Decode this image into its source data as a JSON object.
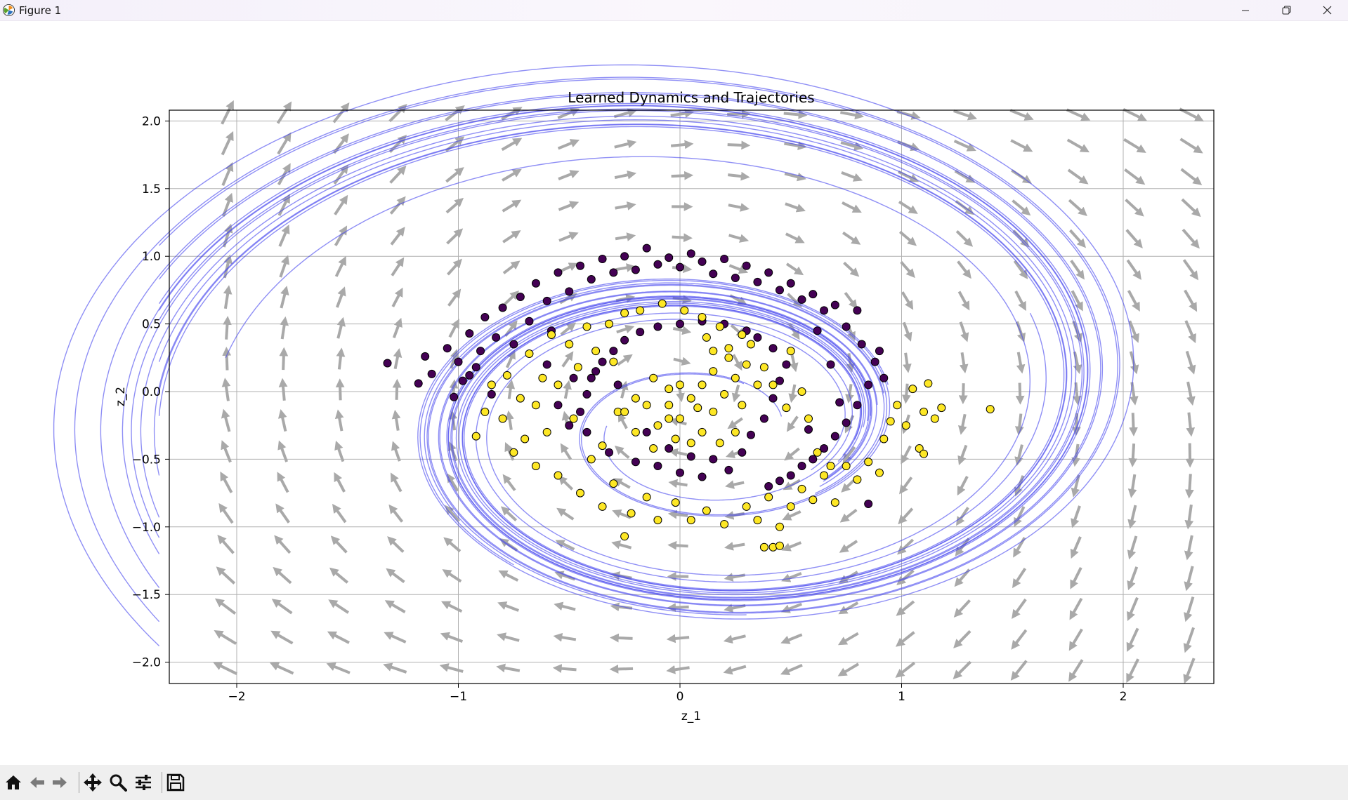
{
  "window": {
    "title": "Figure 1",
    "icons": {
      "app": "matplotlib-logo-icon",
      "minimize": "minimize-icon",
      "restore": "restore-icon",
      "close": "close-icon"
    }
  },
  "toolbar": {
    "buttons": [
      "home-icon",
      "back-arrow-icon",
      "forward-arrow-icon",
      "pan-icon",
      "zoom-icon",
      "configure-subplots-icon",
      "save-icon"
    ]
  },
  "colors": {
    "quiver": "#a9a9a9",
    "trajectory": "#4444ee",
    "class_0": "#440154",
    "class_1": "#fde725",
    "grid": "#b0b0b0"
  },
  "chart_data": {
    "type": "scatter",
    "title": "Learned Dynamics and Trajectories",
    "xlabel": "z_1",
    "ylabel": "z_2",
    "xlim": [
      -2.35,
      2.35
    ],
    "ylim": [
      -2.15,
      2.07
    ],
    "xticks": [
      -2,
      -1,
      0,
      1,
      2
    ],
    "xtick_labels": [
      "−2",
      "−1",
      "0",
      "1",
      "2"
    ],
    "yticks": [
      2.0,
      1.5,
      1.0,
      0.5,
      0.0,
      -0.5,
      -1.0,
      -1.5,
      -2.0
    ],
    "ytick_labels": [
      "2.0",
      "1.5",
      "1.0",
      "0.5",
      "0.0",
      "−0.5",
      "−1.0",
      "−1.5",
      "−2.0"
    ],
    "grid": true,
    "series": [
      {
        "color": "#440154",
        "points": [
          [
            -1.32,
            0.21
          ],
          [
            -1.15,
            0.26
          ],
          [
            -1.12,
            0.13
          ],
          [
            -1.18,
            0.06
          ],
          [
            -1.05,
            0.32
          ],
          [
            -1.02,
            -0.04
          ],
          [
            -0.95,
            0.43
          ],
          [
            -0.92,
            0.18
          ],
          [
            -0.88,
            0.55
          ],
          [
            -0.83,
            0.4
          ],
          [
            -0.8,
            0.62
          ],
          [
            -0.75,
            0.35
          ],
          [
            -0.72,
            0.7
          ],
          [
            -0.68,
            0.52
          ],
          [
            -0.65,
            0.8
          ],
          [
            -0.6,
            0.67
          ],
          [
            -0.58,
            0.45
          ],
          [
            -0.55,
            0.88
          ],
          [
            -0.5,
            0.74
          ],
          [
            -0.45,
            0.93
          ],
          [
            -0.4,
            0.83
          ],
          [
            -0.35,
            0.98
          ],
          [
            -0.3,
            0.88
          ],
          [
            -0.25,
            1.0
          ],
          [
            -0.2,
            0.9
          ],
          [
            -0.15,
            1.06
          ],
          [
            -0.1,
            0.94
          ],
          [
            -0.05,
            0.99
          ],
          [
            0.0,
            0.92
          ],
          [
            0.05,
            1.02
          ],
          [
            0.1,
            0.96
          ],
          [
            0.15,
            0.87
          ],
          [
            0.2,
            0.98
          ],
          [
            0.25,
            0.84
          ],
          [
            0.3,
            0.93
          ],
          [
            0.35,
            0.81
          ],
          [
            0.4,
            0.88
          ],
          [
            0.45,
            0.75
          ],
          [
            0.5,
            0.8
          ],
          [
            0.55,
            0.68
          ],
          [
            0.6,
            0.72
          ],
          [
            0.65,
            0.6
          ],
          [
            0.7,
            0.64
          ],
          [
            0.75,
            0.48
          ],
          [
            0.8,
            0.6
          ],
          [
            0.82,
            0.35
          ],
          [
            0.88,
            0.22
          ],
          [
            0.85,
            0.05
          ],
          [
            0.8,
            -0.1
          ],
          [
            0.75,
            -0.23
          ],
          [
            0.7,
            -0.33
          ],
          [
            0.65,
            -0.42
          ],
          [
            0.6,
            -0.5
          ],
          [
            0.55,
            -0.55
          ],
          [
            0.5,
            -0.62
          ],
          [
            0.45,
            -0.66
          ],
          [
            0.4,
            -0.7
          ],
          [
            -0.98,
            0.08
          ],
          [
            -1.0,
            0.22
          ],
          [
            -0.9,
            0.3
          ],
          [
            -0.85,
            -0.02
          ],
          [
            -0.95,
            0.12
          ],
          [
            -0.6,
            0.2
          ],
          [
            -0.55,
            -0.1
          ],
          [
            -0.48,
            0.1
          ],
          [
            -0.42,
            -0.3
          ],
          [
            -0.38,
            0.15
          ],
          [
            -0.32,
            -0.45
          ],
          [
            -0.28,
            0.05
          ],
          [
            -0.2,
            -0.52
          ],
          [
            -0.15,
            -0.3
          ],
          [
            -0.1,
            -0.55
          ],
          [
            -0.05,
            -0.42
          ],
          [
            0.0,
            -0.6
          ],
          [
            0.05,
            -0.48
          ],
          [
            0.1,
            -0.63
          ],
          [
            0.15,
            -0.5
          ],
          [
            0.22,
            -0.58
          ],
          [
            0.28,
            -0.45
          ],
          [
            0.32,
            -0.32
          ],
          [
            0.38,
            -0.2
          ],
          [
            0.42,
            -0.05
          ],
          [
            0.45,
            0.08
          ],
          [
            0.48,
            0.2
          ],
          [
            0.42,
            0.32
          ],
          [
            0.35,
            0.4
          ],
          [
            0.3,
            0.45
          ],
          [
            0.2,
            0.5
          ],
          [
            0.1,
            0.52
          ],
          [
            0.0,
            0.5
          ],
          [
            -0.1,
            0.48
          ],
          [
            -0.18,
            0.44
          ],
          [
            -0.25,
            0.38
          ],
          [
            -0.3,
            0.3
          ],
          [
            -0.35,
            0.22
          ],
          [
            -0.4,
            0.1
          ],
          [
            -0.42,
            -0.02
          ],
          [
            -0.45,
            -0.15
          ],
          [
            -0.5,
            -0.25
          ],
          [
            0.85,
            -0.83
          ],
          [
            0.9,
            0.3
          ],
          [
            0.92,
            0.1
          ],
          [
            0.62,
            0.45
          ],
          [
            0.68,
            0.2
          ],
          [
            0.72,
            -0.08
          ],
          [
            0.58,
            -0.28
          ]
        ]
      },
      {
        "color": "#fde725",
        "points": [
          [
            -0.92,
            -0.33
          ],
          [
            -0.88,
            -0.15
          ],
          [
            -0.85,
            0.05
          ],
          [
            -0.8,
            -0.2
          ],
          [
            -0.78,
            0.12
          ],
          [
            -0.75,
            -0.45
          ],
          [
            -0.72,
            -0.05
          ],
          [
            -0.68,
            0.28
          ],
          [
            -0.65,
            -0.55
          ],
          [
            -0.62,
            0.1
          ],
          [
            -0.6,
            -0.3
          ],
          [
            -0.58,
            0.42
          ],
          [
            -0.55,
            -0.62
          ],
          [
            -0.5,
            0.35
          ],
          [
            -0.48,
            -0.2
          ],
          [
            -0.45,
            -0.75
          ],
          [
            -0.42,
            0.48
          ],
          [
            -0.4,
            -0.5
          ],
          [
            -0.35,
            -0.85
          ],
          [
            -0.32,
            0.5
          ],
          [
            -0.3,
            -0.68
          ],
          [
            -0.28,
            -0.15
          ],
          [
            -0.25,
            0.58
          ],
          [
            -0.22,
            -0.9
          ],
          [
            -0.2,
            -0.05
          ],
          [
            -0.18,
            0.6
          ],
          [
            -0.15,
            -0.78
          ],
          [
            -0.12,
            0.1
          ],
          [
            -0.1,
            -0.95
          ],
          [
            -0.08,
            0.65
          ],
          [
            -0.05,
            -0.2
          ],
          [
            -0.02,
            -0.82
          ],
          [
            0.0,
            0.05
          ],
          [
            0.02,
            0.6
          ],
          [
            0.05,
            -0.95
          ],
          [
            0.08,
            -0.12
          ],
          [
            0.1,
            0.55
          ],
          [
            0.12,
            -0.88
          ],
          [
            0.15,
            0.15
          ],
          [
            0.18,
            0.48
          ],
          [
            0.2,
            -0.98
          ],
          [
            0.22,
            0.25
          ],
          [
            0.25,
            -0.3
          ],
          [
            0.28,
            0.42
          ],
          [
            0.3,
            -0.85
          ],
          [
            0.32,
            0.35
          ],
          [
            0.35,
            -0.95
          ],
          [
            0.38,
            0.18
          ],
          [
            0.4,
            -0.78
          ],
          [
            0.42,
            0.05
          ],
          [
            0.45,
            -1.0
          ],
          [
            0.48,
            -0.12
          ],
          [
            0.5,
            -0.85
          ],
          [
            0.55,
            -0.72
          ],
          [
            0.6,
            -0.8
          ],
          [
            0.65,
            -0.62
          ],
          [
            0.7,
            -0.82
          ],
          [
            0.75,
            -0.55
          ],
          [
            0.8,
            -0.65
          ],
          [
            0.85,
            -0.52
          ],
          [
            0.9,
            -0.6
          ],
          [
            0.92,
            -0.35
          ],
          [
            0.95,
            -0.22
          ],
          [
            0.98,
            -0.1
          ],
          [
            1.02,
            -0.25
          ],
          [
            1.05,
            0.02
          ],
          [
            1.08,
            -0.42
          ],
          [
            1.1,
            -0.15
          ],
          [
            1.12,
            0.06
          ],
          [
            1.15,
            -0.2
          ],
          [
            1.18,
            -0.12
          ],
          [
            1.1,
            -0.46
          ],
          [
            1.4,
            -0.13
          ],
          [
            0.38,
            -1.15
          ],
          [
            0.42,
            -1.15
          ],
          [
            0.45,
            -1.14
          ],
          [
            -0.15,
            -0.1
          ],
          [
            -0.1,
            -0.25
          ],
          [
            -0.05,
            -0.1
          ],
          [
            0.0,
            -0.2
          ],
          [
            0.05,
            -0.05
          ],
          [
            0.1,
            -0.3
          ],
          [
            0.15,
            -0.15
          ],
          [
            0.2,
            -0.02
          ],
          [
            0.25,
            0.1
          ],
          [
            -0.2,
            -0.3
          ],
          [
            -0.25,
            -0.15
          ],
          [
            -0.05,
            0.02
          ],
          [
            0.1,
            0.05
          ],
          [
            0.3,
            0.2
          ],
          [
            0.35,
            0.05
          ],
          [
            0.28,
            -0.1
          ],
          [
            -0.02,
            -0.35
          ],
          [
            0.05,
            -0.38
          ],
          [
            -0.12,
            -0.42
          ],
          [
            0.18,
            -0.38
          ],
          [
            0.22,
            0.32
          ],
          [
            0.15,
            0.3
          ],
          [
            -0.35,
            -0.4
          ],
          [
            -0.55,
            0.05
          ],
          [
            -0.65,
            -0.1
          ],
          [
            -0.7,
            -0.35
          ],
          [
            -0.38,
            0.3
          ],
          [
            -0.46,
            0.18
          ],
          [
            0.5,
            0.3
          ],
          [
            0.55,
            0.0
          ],
          [
            0.58,
            -0.2
          ],
          [
            0.62,
            -0.45
          ],
          [
            0.68,
            -0.55
          ],
          [
            -0.25,
            -1.07
          ],
          [
            -0.3,
            0.22
          ],
          [
            0.12,
            0.4
          ]
        ]
      }
    ]
  }
}
